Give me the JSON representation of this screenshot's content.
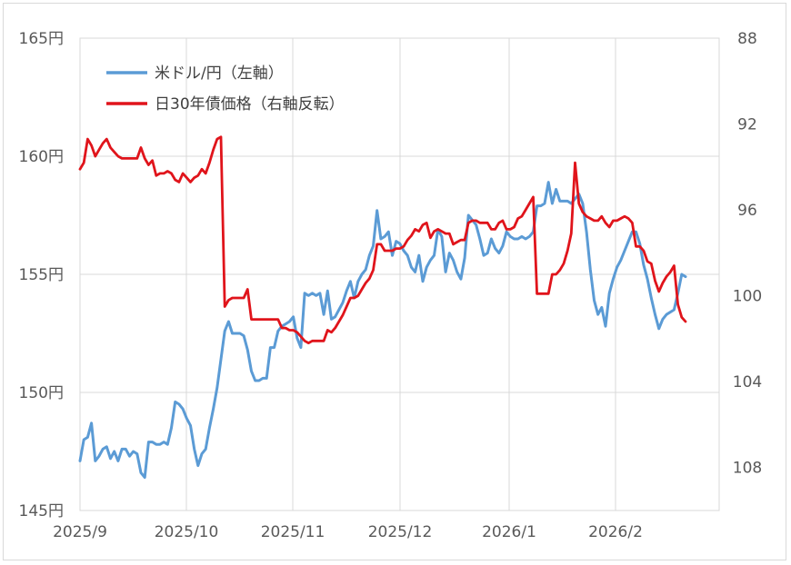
{
  "chart_data": {
    "type": "line",
    "title": "",
    "x_ticks": [
      "2025/9",
      "2025/10",
      "2025/11",
      "2025/12",
      "2026/1",
      "2026/2"
    ],
    "left_axis": {
      "ticks": [
        "145円",
        "150円",
        "155円",
        "160円",
        "165円"
      ],
      "range": [
        145,
        165
      ]
    },
    "right_axis": {
      "ticks": [
        "88",
        "92",
        "96",
        "100",
        "104",
        "108"
      ],
      "range": [
        88,
        110
      ],
      "reversed": true
    },
    "grid": true,
    "legend": {
      "placement": "top-left"
    },
    "series": [
      {
        "name": "米ドル/円（左軸）",
        "axis": "left",
        "color": "#5b9bd5",
        "points": [
          [
            0,
            147.1
          ],
          [
            1,
            148.0
          ],
          [
            2,
            148.1
          ],
          [
            3,
            148.7
          ],
          [
            4,
            147.1
          ],
          [
            5,
            147.3
          ],
          [
            6,
            147.6
          ],
          [
            7,
            147.7
          ],
          [
            8,
            147.2
          ],
          [
            9,
            147.5
          ],
          [
            10,
            147.1
          ],
          [
            11,
            147.6
          ],
          [
            12,
            147.6
          ],
          [
            13,
            147.3
          ],
          [
            14,
            147.5
          ],
          [
            15,
            147.4
          ],
          [
            16,
            146.6
          ],
          [
            17,
            146.4
          ],
          [
            18,
            147.9
          ],
          [
            19,
            147.9
          ],
          [
            20,
            147.8
          ],
          [
            21,
            147.8
          ],
          [
            22,
            147.9
          ],
          [
            23,
            147.8
          ],
          [
            24,
            148.5
          ],
          [
            25,
            149.6
          ],
          [
            26,
            149.5
          ],
          [
            27,
            149.3
          ],
          [
            28,
            148.9
          ],
          [
            29,
            148.6
          ],
          [
            30,
            147.6
          ],
          [
            31,
            146.9
          ],
          [
            32,
            147.4
          ],
          [
            33,
            147.6
          ],
          [
            34,
            148.5
          ],
          [
            35,
            149.3
          ],
          [
            36,
            150.2
          ],
          [
            37,
            151.4
          ],
          [
            38,
            152.6
          ],
          [
            39,
            153.0
          ],
          [
            40,
            152.5
          ],
          [
            41,
            152.5
          ],
          [
            42,
            152.5
          ],
          [
            43,
            152.4
          ],
          [
            44,
            151.8
          ],
          [
            45,
            150.9
          ],
          [
            46,
            150.5
          ],
          [
            47,
            150.5
          ],
          [
            48,
            150.6
          ],
          [
            49,
            150.6
          ],
          [
            50,
            151.9
          ],
          [
            51,
            151.9
          ],
          [
            52,
            152.6
          ],
          [
            53,
            152.8
          ],
          [
            54,
            152.9
          ],
          [
            55,
            153.0
          ],
          [
            56,
            153.2
          ],
          [
            57,
            152.3
          ],
          [
            58,
            151.9
          ],
          [
            59,
            154.2
          ],
          [
            60,
            154.1
          ],
          [
            61,
            154.2
          ],
          [
            62,
            154.1
          ],
          [
            63,
            154.2
          ],
          [
            64,
            153.3
          ],
          [
            65,
            154.3
          ],
          [
            66,
            153.1
          ],
          [
            67,
            153.2
          ],
          [
            68,
            153.5
          ],
          [
            69,
            153.8
          ],
          [
            70,
            154.3
          ],
          [
            71,
            154.7
          ],
          [
            72,
            154.0
          ],
          [
            73,
            154.7
          ],
          [
            74,
            155.0
          ],
          [
            75,
            155.2
          ],
          [
            76,
            155.8
          ],
          [
            77,
            156.2
          ],
          [
            78,
            157.7
          ],
          [
            79,
            156.5
          ],
          [
            80,
            156.6
          ],
          [
            81,
            156.8
          ],
          [
            82,
            155.8
          ],
          [
            83,
            156.4
          ],
          [
            84,
            156.3
          ],
          [
            85,
            156.0
          ],
          [
            86,
            155.8
          ],
          [
            87,
            155.3
          ],
          [
            88,
            155.1
          ],
          [
            89,
            155.8
          ],
          [
            90,
            154.7
          ],
          [
            91,
            155.3
          ],
          [
            92,
            155.6
          ],
          [
            93,
            155.8
          ],
          [
            94,
            156.9
          ],
          [
            95,
            156.6
          ],
          [
            96,
            155.1
          ],
          [
            97,
            155.9
          ],
          [
            98,
            155.6
          ],
          [
            99,
            155.1
          ],
          [
            100,
            154.8
          ],
          [
            101,
            155.7
          ],
          [
            102,
            157.5
          ],
          [
            103,
            157.3
          ],
          [
            104,
            157.1
          ],
          [
            105,
            156.5
          ],
          [
            106,
            155.8
          ],
          [
            107,
            155.9
          ],
          [
            108,
            156.5
          ],
          [
            109,
            156.1
          ],
          [
            110,
            155.9
          ],
          [
            111,
            156.2
          ],
          [
            112,
            156.8
          ],
          [
            113,
            156.6
          ],
          [
            114,
            156.5
          ],
          [
            115,
            156.5
          ],
          [
            116,
            156.6
          ],
          [
            117,
            156.5
          ],
          [
            118,
            156.6
          ],
          [
            119,
            156.8
          ],
          [
            120,
            157.9
          ],
          [
            121,
            157.9
          ],
          [
            122,
            158.0
          ],
          [
            123,
            158.9
          ],
          [
            124,
            158.0
          ],
          [
            125,
            158.6
          ],
          [
            126,
            158.1
          ],
          [
            127,
            158.1
          ],
          [
            128,
            158.1
          ],
          [
            129,
            158.0
          ],
          [
            130,
            158.2
          ],
          [
            131,
            158.4
          ],
          [
            132,
            158.0
          ],
          [
            133,
            156.8
          ],
          [
            134,
            155.2
          ],
          [
            135,
            153.9
          ],
          [
            136,
            153.3
          ],
          [
            137,
            153.6
          ],
          [
            138,
            152.8
          ],
          [
            139,
            154.2
          ],
          [
            140,
            154.8
          ],
          [
            141,
            155.3
          ],
          [
            142,
            155.6
          ],
          [
            143,
            156.0
          ],
          [
            144,
            156.4
          ],
          [
            145,
            156.8
          ],
          [
            146,
            156.8
          ],
          [
            147,
            156.3
          ],
          [
            148,
            155.4
          ],
          [
            149,
            154.8
          ],
          [
            150,
            154.0
          ],
          [
            151,
            153.3
          ],
          [
            152,
            152.7
          ],
          [
            153,
            153.1
          ],
          [
            154,
            153.3
          ],
          [
            155,
            153.4
          ],
          [
            156,
            153.5
          ],
          [
            157,
            154.2
          ],
          [
            158,
            155.0
          ],
          [
            159,
            154.9
          ]
        ]
      },
      {
        "name": "日30年債価格（右軸反転）",
        "axis": "right",
        "color": "#e0141b",
        "points": [
          [
            0,
            94.1
          ],
          [
            1,
            93.8
          ],
          [
            2,
            92.7
          ],
          [
            3,
            93.0
          ],
          [
            4,
            93.5
          ],
          [
            5,
            93.2
          ],
          [
            6,
            92.9
          ],
          [
            7,
            92.7
          ],
          [
            8,
            93.1
          ],
          [
            9,
            93.3
          ],
          [
            10,
            93.5
          ],
          [
            11,
            93.6
          ],
          [
            12,
            93.6
          ],
          [
            13,
            93.6
          ],
          [
            14,
            93.6
          ],
          [
            15,
            93.6
          ],
          [
            16,
            93.1
          ],
          [
            17,
            93.6
          ],
          [
            18,
            93.9
          ],
          [
            19,
            93.7
          ],
          [
            20,
            94.4
          ],
          [
            21,
            94.3
          ],
          [
            22,
            94.3
          ],
          [
            23,
            94.2
          ],
          [
            24,
            94.3
          ],
          [
            25,
            94.6
          ],
          [
            26,
            94.7
          ],
          [
            27,
            94.3
          ],
          [
            28,
            94.5
          ],
          [
            29,
            94.7
          ],
          [
            30,
            94.5
          ],
          [
            31,
            94.4
          ],
          [
            32,
            94.1
          ],
          [
            33,
            94.3
          ],
          [
            34,
            93.8
          ],
          [
            35,
            93.2
          ],
          [
            36,
            92.7
          ],
          [
            37,
            92.6
          ],
          [
            38,
            100.5
          ],
          [
            39,
            100.2
          ],
          [
            40,
            100.1
          ],
          [
            41,
            100.1
          ],
          [
            42,
            100.1
          ],
          [
            43,
            100.1
          ],
          [
            44,
            99.7
          ],
          [
            45,
            101.1
          ],
          [
            46,
            101.1
          ],
          [
            47,
            101.1
          ],
          [
            48,
            101.1
          ],
          [
            49,
            101.1
          ],
          [
            50,
            101.1
          ],
          [
            51,
            101.1
          ],
          [
            52,
            101.1
          ],
          [
            53,
            101.5
          ],
          [
            54,
            101.5
          ],
          [
            55,
            101.6
          ],
          [
            56,
            101.6
          ],
          [
            57,
            101.7
          ],
          [
            58,
            101.9
          ],
          [
            59,
            102.1
          ],
          [
            60,
            102.2
          ],
          [
            61,
            102.1
          ],
          [
            62,
            102.1
          ],
          [
            63,
            102.1
          ],
          [
            64,
            102.1
          ],
          [
            65,
            101.6
          ],
          [
            66,
            101.7
          ],
          [
            67,
            101.5
          ],
          [
            68,
            101.2
          ],
          [
            69,
            100.9
          ],
          [
            70,
            100.5
          ],
          [
            71,
            100.1
          ],
          [
            72,
            100.1
          ],
          [
            73,
            100.0
          ],
          [
            74,
            99.7
          ],
          [
            75,
            99.4
          ],
          [
            76,
            99.2
          ],
          [
            77,
            98.8
          ],
          [
            78,
            97.6
          ],
          [
            79,
            97.6
          ],
          [
            80,
            97.9
          ],
          [
            81,
            97.9
          ],
          [
            82,
            97.9
          ],
          [
            83,
            97.8
          ],
          [
            84,
            97.8
          ],
          [
            85,
            97.7
          ],
          [
            86,
            97.4
          ],
          [
            87,
            97.2
          ],
          [
            88,
            96.9
          ],
          [
            89,
            97.0
          ],
          [
            90,
            96.7
          ],
          [
            91,
            96.6
          ],
          [
            92,
            97.3
          ],
          [
            93,
            97.0
          ],
          [
            94,
            96.9
          ],
          [
            95,
            97.0
          ],
          [
            96,
            97.1
          ],
          [
            97,
            97.1
          ],
          [
            98,
            97.6
          ],
          [
            99,
            97.5
          ],
          [
            100,
            97.4
          ],
          [
            101,
            97.4
          ],
          [
            102,
            96.6
          ],
          [
            103,
            96.5
          ],
          [
            104,
            96.5
          ],
          [
            105,
            96.6
          ],
          [
            106,
            96.6
          ],
          [
            107,
            96.6
          ],
          [
            108,
            96.9
          ],
          [
            109,
            96.9
          ],
          [
            110,
            96.6
          ],
          [
            111,
            96.5
          ],
          [
            112,
            96.9
          ],
          [
            113,
            96.9
          ],
          [
            114,
            96.8
          ],
          [
            115,
            96.4
          ],
          [
            116,
            96.3
          ],
          [
            117,
            96.0
          ],
          [
            118,
            95.7
          ],
          [
            119,
            95.4
          ],
          [
            120,
            99.9
          ],
          [
            121,
            99.9
          ],
          [
            122,
            99.9
          ],
          [
            123,
            99.9
          ],
          [
            124,
            99.0
          ],
          [
            125,
            99.0
          ],
          [
            126,
            98.8
          ],
          [
            127,
            98.5
          ],
          [
            128,
            97.9
          ],
          [
            129,
            97.1
          ],
          [
            130,
            93.8
          ],
          [
            131,
            95.7
          ],
          [
            132,
            96.1
          ],
          [
            133,
            96.3
          ],
          [
            134,
            96.4
          ],
          [
            135,
            96.5
          ],
          [
            136,
            96.5
          ],
          [
            137,
            96.3
          ],
          [
            138,
            96.6
          ],
          [
            139,
            96.8
          ],
          [
            140,
            96.5
          ],
          [
            141,
            96.5
          ],
          [
            142,
            96.4
          ],
          [
            143,
            96.3
          ],
          [
            144,
            96.4
          ],
          [
            145,
            96.6
          ],
          [
            146,
            97.7
          ],
          [
            147,
            97.7
          ],
          [
            148,
            97.9
          ],
          [
            149,
            98.4
          ],
          [
            150,
            98.5
          ],
          [
            151,
            99.3
          ],
          [
            152,
            99.8
          ],
          [
            153,
            99.4
          ],
          [
            154,
            99.1
          ],
          [
            155,
            98.9
          ],
          [
            156,
            98.6
          ],
          [
            157,
            100.4
          ],
          [
            158,
            101.0
          ],
          [
            159,
            101.2
          ]
        ]
      }
    ]
  }
}
